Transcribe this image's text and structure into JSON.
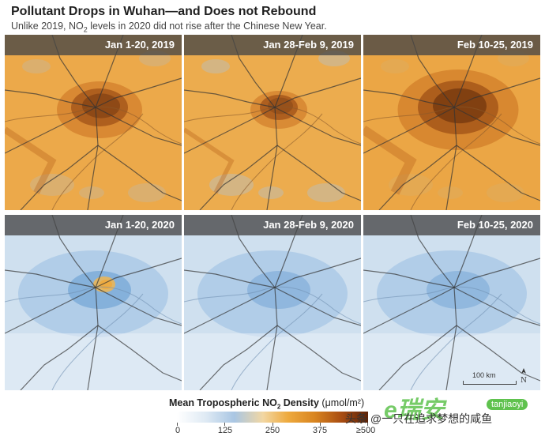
{
  "header": {
    "title": "Pollutant Drops in Wuhan—and Does not Rebound",
    "subtitle_before": "Unlike 2019, NO",
    "subtitle_sub": "2",
    "subtitle_after": " levels in 2020 did not rise after the Chinese New Year."
  },
  "panels": [
    {
      "label": "Jan 1-20, 2019",
      "year": 2019,
      "level": 0.6
    },
    {
      "label": "Jan 28-Feb 9, 2019",
      "year": 2019,
      "level": 0.4
    },
    {
      "label": "Feb 10-25, 2019",
      "year": 2019,
      "level": 0.85
    },
    {
      "label": "Jan 1-20, 2020",
      "year": 2020,
      "level": 0.35
    },
    {
      "label": "Jan 28-Feb 9, 2020",
      "year": 2020,
      "level": 0.15
    },
    {
      "label": "Feb 10-25, 2020",
      "year": 2020,
      "level": 0.12
    }
  ],
  "scale": {
    "label": "100 km"
  },
  "north": {
    "label": "N"
  },
  "legend": {
    "title_before": "Mean Tropospheric NO",
    "title_sub": "2",
    "title_bold_after": " Density",
    "unit": " (μmol/m²)",
    "ticks": [
      "0",
      "125",
      "250",
      "375",
      "≥500"
    ],
    "tick_values": [
      0,
      125,
      250,
      375,
      500
    ],
    "colors": [
      "#ffffff",
      "#a9c6e3",
      "#eeaa3e",
      "#a94d12",
      "#5a2208"
    ]
  },
  "watermark": {
    "text": "头条 @一只在追求梦想的咸鱼",
    "logo": "e瑞安",
    "badge": "tanjiaoyi"
  }
}
